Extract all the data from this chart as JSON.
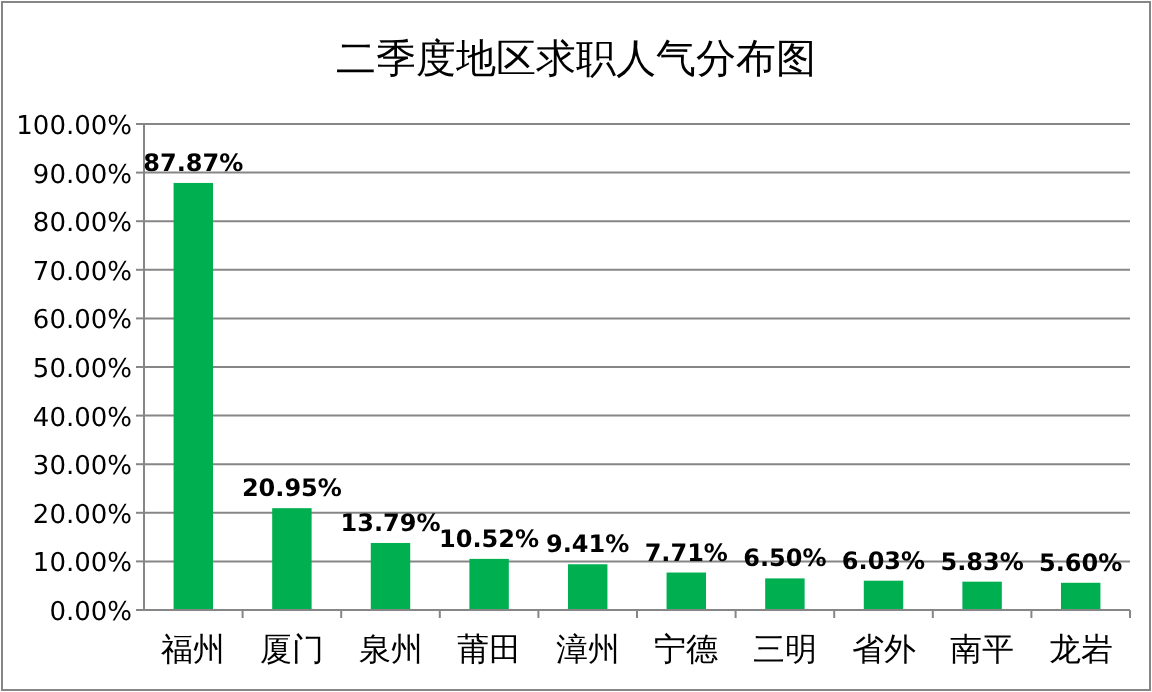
{
  "chart_data": {
    "type": "bar",
    "title": "二季度地区求职人气分布图",
    "categories": [
      "福州",
      "厦门",
      "泉州",
      "莆田",
      "漳州",
      "宁德",
      "三明",
      "省外",
      "南平",
      "龙岩"
    ],
    "values": [
      87.87,
      20.95,
      13.79,
      10.52,
      9.41,
      7.71,
      6.5,
      6.03,
      5.83,
      5.6
    ],
    "value_labels": [
      "87.87%",
      "20.95%",
      "13.79%",
      "10.52%",
      "9.41%",
      "7.71%",
      "6.50%",
      "6.03%",
      "5.83%",
      "5.60%"
    ],
    "color": "#00b050",
    "ylim": [
      0,
      100
    ],
    "yticks": [
      {
        "value": 0,
        "label": "0.00%"
      },
      {
        "value": 10,
        "label": "10.00%"
      },
      {
        "value": 20,
        "label": "20.00%"
      },
      {
        "value": 30,
        "label": "30.00%"
      },
      {
        "value": 40,
        "label": "40.00%"
      },
      {
        "value": 50,
        "label": "50.00%"
      },
      {
        "value": 60,
        "label": "60.00%"
      },
      {
        "value": 70,
        "label": "70.00%"
      },
      {
        "value": 80,
        "label": "80.00%"
      },
      {
        "value": 90,
        "label": "90.00%"
      },
      {
        "value": 100,
        "label": "100.00%"
      }
    ],
    "grid": "y"
  }
}
